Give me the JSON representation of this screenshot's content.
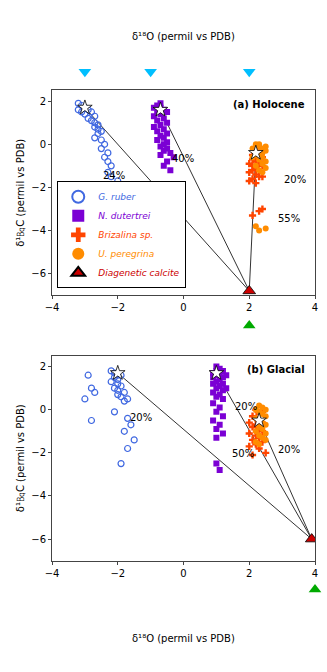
{
  "chart_data": [
    {
      "type": "scatter",
      "title": "(a) Holocene",
      "xlabel": "δ¹⁸O (permil vs PDB)",
      "ylabel": "δ¹㏃C (permil vs PDB)",
      "xlim": [
        -4,
        4
      ],
      "ylim": [
        -7,
        2.5
      ],
      "xticks": [
        -4,
        -2,
        0,
        2,
        4
      ],
      "yticks": [
        -6,
        -4,
        -2,
        0,
        2
      ],
      "grid": false,
      "legend": "lower left",
      "series": [
        {
          "name": "G. ruber",
          "type": "scatter",
          "marker": "circle-open",
          "color": "#4169E1",
          "x": [
            -3.2,
            -3.1,
            -3.0,
            -3.2,
            -3.1,
            -3.0,
            -2.9,
            -2.8,
            -2.7,
            -2.9,
            -2.8,
            -2.7,
            -2.6,
            -2.7,
            -2.6,
            -2.5,
            -2.6,
            -2.7,
            -2.5,
            -2.4,
            -2.5,
            -2.3,
            -2.4,
            -2.3,
            -2.2,
            -2.3,
            -2.2,
            -2.0,
            -2.5
          ],
          "values": [
            1.9,
            1.8,
            1.7,
            1.6,
            1.5,
            1.4,
            1.6,
            1.5,
            1.3,
            1.2,
            1.1,
            1.0,
            0.9,
            0.8,
            0.7,
            0.6,
            0.5,
            0.3,
            0.2,
            0.0,
            -0.2,
            -0.4,
            -0.6,
            -0.8,
            -1.0,
            -1.3,
            -1.5,
            -1.7,
            -1.9
          ]
        },
        {
          "name": "N. dutertrei",
          "type": "scatter",
          "marker": "square",
          "color": "#7B00D4",
          "x": [
            -0.7,
            -0.8,
            -0.9,
            -0.7,
            -0.6,
            -0.8,
            -0.5,
            -0.7,
            -0.9,
            -0.6,
            -0.8,
            -0.5,
            -0.7,
            -0.9,
            -0.6,
            -0.8,
            -0.5,
            -0.7,
            -0.6,
            -0.8,
            -0.5,
            -0.6,
            -0.7,
            -0.5,
            -0.6,
            -0.4,
            -0.7,
            -0.3,
            -0.5,
            -0.6,
            -0.4
          ],
          "values": [
            1.9,
            1.8,
            1.7,
            1.7,
            1.6,
            1.5,
            1.5,
            1.4,
            1.3,
            1.2,
            1.1,
            1.0,
            0.9,
            0.8,
            0.7,
            0.6,
            0.5,
            0.4,
            0.3,
            0.2,
            0.1,
            0.0,
            -0.1,
            -0.2,
            -0.3,
            -0.4,
            -0.5,
            -0.6,
            -0.8,
            -1.0,
            -1.2
          ]
        },
        {
          "name": "Brizalina sp.",
          "type": "scatter",
          "marker": "cross",
          "color": "#FF4500",
          "x": [
            2.1,
            2.2,
            2.3,
            2.1,
            2.2,
            2.3,
            2.0,
            2.1,
            2.4,
            2.2,
            2.3,
            2.1,
            2.0,
            2.4,
            2.2,
            2.3,
            2.1,
            2.0,
            2.4,
            2.2,
            2.3,
            2.1,
            2.4
          ],
          "values": [
            -0.5,
            -0.6,
            -0.4,
            -0.7,
            -0.8,
            -0.5,
            -0.9,
            -1.0,
            -0.6,
            -1.1,
            -0.9,
            -1.2,
            -1.3,
            -1.0,
            -1.4,
            -1.5,
            -1.6,
            -1.7,
            -1.5,
            -1.8,
            -3.1,
            -3.3,
            -3.0
          ]
        },
        {
          "name": "U. peregrina",
          "type": "scatter",
          "marker": "circle",
          "color": "#FF8C00",
          "x": [
            2.2,
            2.3,
            2.1,
            2.4,
            2.2,
            2.3,
            2.5,
            2.4,
            2.2,
            2.3,
            2.5,
            2.1,
            2.4,
            2.3,
            2.5,
            2.4,
            2.2,
            2.3,
            2.5,
            2.4,
            2.2,
            2.5,
            2.3
          ],
          "values": [
            0.0,
            -0.1,
            -0.2,
            -0.2,
            -0.3,
            0.0,
            -0.1,
            -0.4,
            -0.5,
            -0.5,
            -0.3,
            -0.6,
            -0.6,
            -0.7,
            -0.8,
            -0.9,
            -1.0,
            -1.2,
            -1.1,
            -1.3,
            -3.8,
            -3.9,
            -4.0
          ]
        },
        {
          "name": "Diagenetic calcite",
          "type": "scatter",
          "marker": "triangle-up",
          "color": "#CC0000",
          "x": [
            2.0
          ],
          "values": [
            -6.8
          ]
        },
        {
          "type": "scatter",
          "marker": "star",
          "color": "#FFFFFF",
          "x": [
            -3.0,
            -0.7,
            2.2
          ],
          "values": [
            1.7,
            1.6,
            -0.4
          ]
        },
        {
          "type": "line",
          "color": "#333333",
          "x": [
            -3.0,
            2.0
          ],
          "values": [
            1.7,
            -6.8
          ]
        },
        {
          "type": "line",
          "color": "#333333",
          "x": [
            -0.7,
            2.0
          ],
          "values": [
            1.6,
            -6.8
          ]
        },
        {
          "type": "line",
          "color": "#333333",
          "x": [
            2.2,
            2.0
          ],
          "values": [
            -0.4,
            -6.8
          ]
        }
      ],
      "annotations": [
        {
          "x": -2.5,
          "y": -1.8,
          "text": "24%"
        },
        {
          "x": -0.4,
          "y": -1.0,
          "text": "40%"
        },
        {
          "x": 3.0,
          "y": -2.0,
          "text": "20%"
        },
        {
          "x": 2.8,
          "y": -3.8,
          "text": "55%"
        }
      ],
      "top_markers": {
        "x": [
          -3.0,
          -1.0,
          2.0
        ],
        "color": "#00BFFF",
        "marker": "triangle-down"
      },
      "bottom_markers": {
        "x": [
          2.0
        ],
        "color": "#00AA00",
        "marker": "triangle-up"
      }
    },
    {
      "type": "scatter",
      "title": "(b) Glacial",
      "xlabel": "δ¹⁸O (permil vs PDB)",
      "ylabel": "δ¹㏃C (permil vs PDB)",
      "xlim": [
        -4,
        4
      ],
      "ylim": [
        -7,
        2.5
      ],
      "xticks": [
        -4,
        -2,
        0,
        2,
        4
      ],
      "yticks": [
        -6,
        -4,
        -2,
        0,
        2
      ],
      "grid": false,
      "series": [
        {
          "name": "G. ruber",
          "type": "scatter",
          "marker": "circle-open",
          "color": "#4169E1",
          "x": [
            -2.2,
            -2.1,
            -2.0,
            -2.1,
            -2.0,
            -1.9,
            -2.2,
            -2.0,
            -1.9,
            -2.1,
            -2.0,
            -1.8,
            -2.0,
            -1.9,
            -1.7,
            -1.8,
            -2.1,
            -1.7,
            -1.6,
            -1.8,
            -1.5,
            -1.7,
            -1.9,
            -2.8,
            -2.7,
            -2.9,
            -3.0,
            -2.8
          ],
          "values": [
            1.8,
            1.7,
            1.6,
            1.5,
            1.4,
            1.6,
            1.3,
            1.2,
            1.1,
            1.0,
            0.9,
            0.8,
            0.7,
            0.6,
            0.5,
            0.4,
            -0.1,
            -0.4,
            -0.7,
            -1.0,
            -1.4,
            -1.8,
            -2.5,
            1.0,
            0.8,
            1.6,
            0.5,
            -0.5
          ]
        },
        {
          "name": "N. dutertrei",
          "type": "scatter",
          "marker": "square",
          "color": "#7B00D4",
          "x": [
            1.0,
            1.1,
            1.2,
            1.0,
            0.9,
            1.1,
            1.3,
            1.0,
            1.2,
            0.9,
            1.1,
            1.0,
            1.2,
            0.9,
            1.1,
            1.3,
            1.0,
            1.2,
            0.9,
            1.1,
            1.0,
            1.2,
            0.9,
            1.1,
            1.0,
            1.2,
            0.9,
            1.1,
            1.0,
            1.2,
            1.0,
            1.1,
            1.0
          ],
          "values": [
            2.0,
            1.9,
            1.8,
            1.8,
            1.7,
            1.7,
            1.6,
            1.6,
            1.5,
            1.5,
            1.4,
            1.3,
            1.2,
            1.2,
            1.1,
            1.0,
            1.0,
            0.9,
            0.8,
            0.7,
            0.6,
            0.5,
            0.3,
            0.1,
            -0.1,
            -0.3,
            -0.5,
            -0.7,
            -0.9,
            -1.1,
            -1.3,
            -2.8,
            -2.5
          ]
        },
        {
          "name": "Brizalina sp.",
          "type": "scatter",
          "marker": "cross",
          "color": "#FF4500",
          "x": [
            2.2,
            2.3,
            2.1,
            2.4,
            2.2,
            2.3,
            2.0,
            2.4,
            2.2,
            2.1,
            2.3,
            2.4,
            2.0,
            2.2,
            2.3,
            2.1,
            2.4,
            2.2,
            2.0,
            2.3,
            2.5,
            2.1
          ],
          "values": [
            0.0,
            -0.2,
            -0.3,
            -0.1,
            -0.4,
            -0.5,
            -0.6,
            -0.6,
            -0.7,
            -0.8,
            -0.9,
            -1.0,
            -1.1,
            -1.2,
            -1.3,
            -1.4,
            -1.5,
            -1.6,
            -1.7,
            -1.8,
            -2.0,
            -2.1
          ]
        },
        {
          "name": "U. peregrina",
          "type": "scatter",
          "marker": "circle",
          "color": "#FF8C00",
          "x": [
            2.3,
            2.4,
            2.2,
            2.5,
            2.3,
            2.4,
            2.5,
            2.2,
            2.3,
            2.4,
            2.5,
            2.3,
            2.4,
            2.2,
            2.5,
            2.3,
            2.4,
            2.5,
            2.2,
            2.3
          ],
          "values": [
            0.2,
            0.1,
            0.0,
            0.0,
            -0.1,
            -0.2,
            -0.3,
            -0.4,
            -0.5,
            -0.6,
            -0.7,
            -0.8,
            -0.9,
            -1.0,
            -1.1,
            -1.2,
            -1.3,
            -1.4,
            -1.5,
            -1.6
          ]
        },
        {
          "name": "Diagenetic calcite",
          "type": "scatter",
          "marker": "triangle-up",
          "color": "#CC0000",
          "x": [
            3.9
          ],
          "values": [
            -6.0
          ]
        },
        {
          "type": "scatter",
          "marker": "star",
          "color": "#FFFFFF",
          "x": [
            -2.0,
            1.0,
            2.3
          ],
          "values": [
            1.7,
            1.7,
            -0.5
          ]
        },
        {
          "type": "line",
          "color": "#333333",
          "x": [
            -2.0,
            3.9
          ],
          "values": [
            1.7,
            -6.0
          ]
        },
        {
          "type": "line",
          "color": "#333333",
          "x": [
            1.0,
            3.9
          ],
          "values": [
            1.7,
            -6.0
          ]
        },
        {
          "type": "line",
          "color": "#333333",
          "x": [
            2.3,
            3.9
          ],
          "values": [
            -0.5,
            -6.0
          ]
        }
      ],
      "annotations": [
        {
          "x": -1.7,
          "y": -0.7,
          "text": "20%"
        },
        {
          "x": 1.5,
          "y": -0.2,
          "text": "20%"
        },
        {
          "x": 1.4,
          "y": -2.4,
          "text": "50%"
        },
        {
          "x": 2.8,
          "y": -2.2,
          "text": "20%"
        }
      ],
      "bottom_markers": {
        "x": [
          4.0
        ],
        "color": "#00AA00",
        "marker": "triangle-up"
      }
    }
  ]
}
